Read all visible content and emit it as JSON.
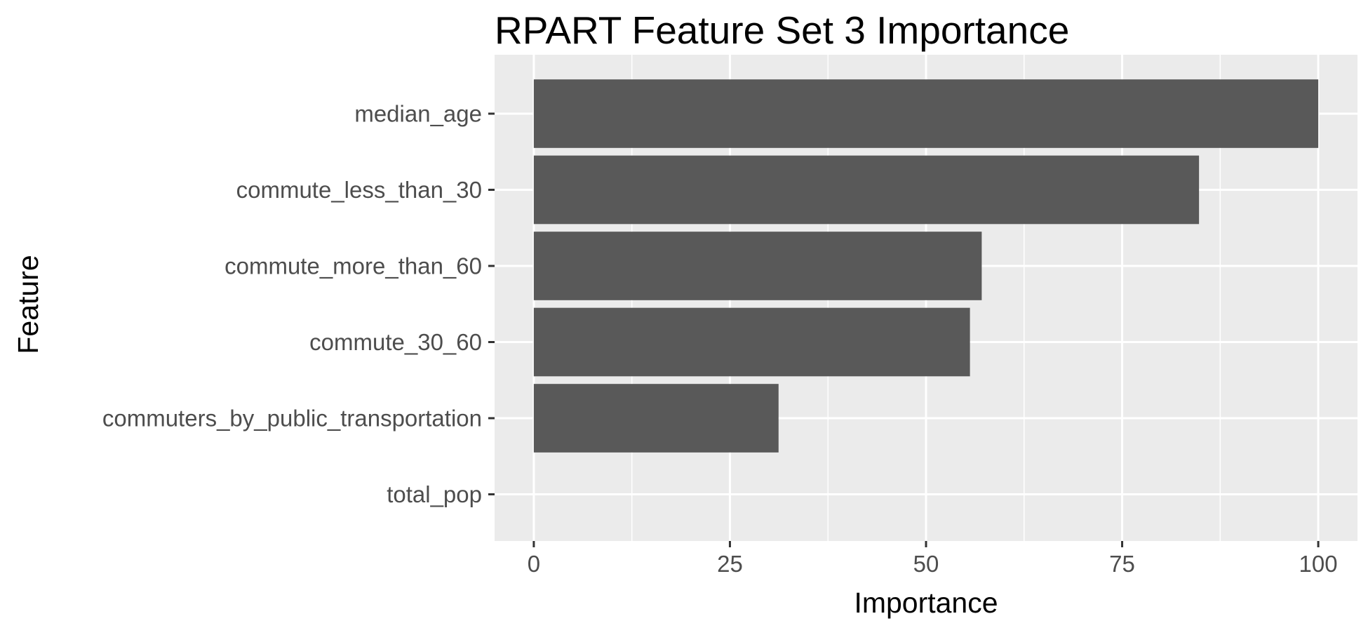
{
  "chart_data": {
    "type": "bar",
    "orientation": "horizontal",
    "title": "RPART Feature Set 3 Importance",
    "xlabel": "Importance",
    "ylabel": "Feature",
    "categories": [
      "median_age",
      "commute_less_than_30",
      "commute_more_than_60",
      "commute_30_60",
      "commuters_by_public_transportation",
      "total_pop"
    ],
    "values": [
      100,
      84.8,
      57.1,
      55.6,
      31.2,
      0
    ],
    "xlim": [
      -5,
      105
    ],
    "xticks": [
      0,
      25,
      50,
      75,
      100
    ],
    "grid": true,
    "legend": "none",
    "colors": {
      "bar": "#595959",
      "panel": "#ebebeb",
      "grid": "#ffffff",
      "tick_text": "#4d4d4d",
      "tick_mark": "#333333"
    }
  }
}
